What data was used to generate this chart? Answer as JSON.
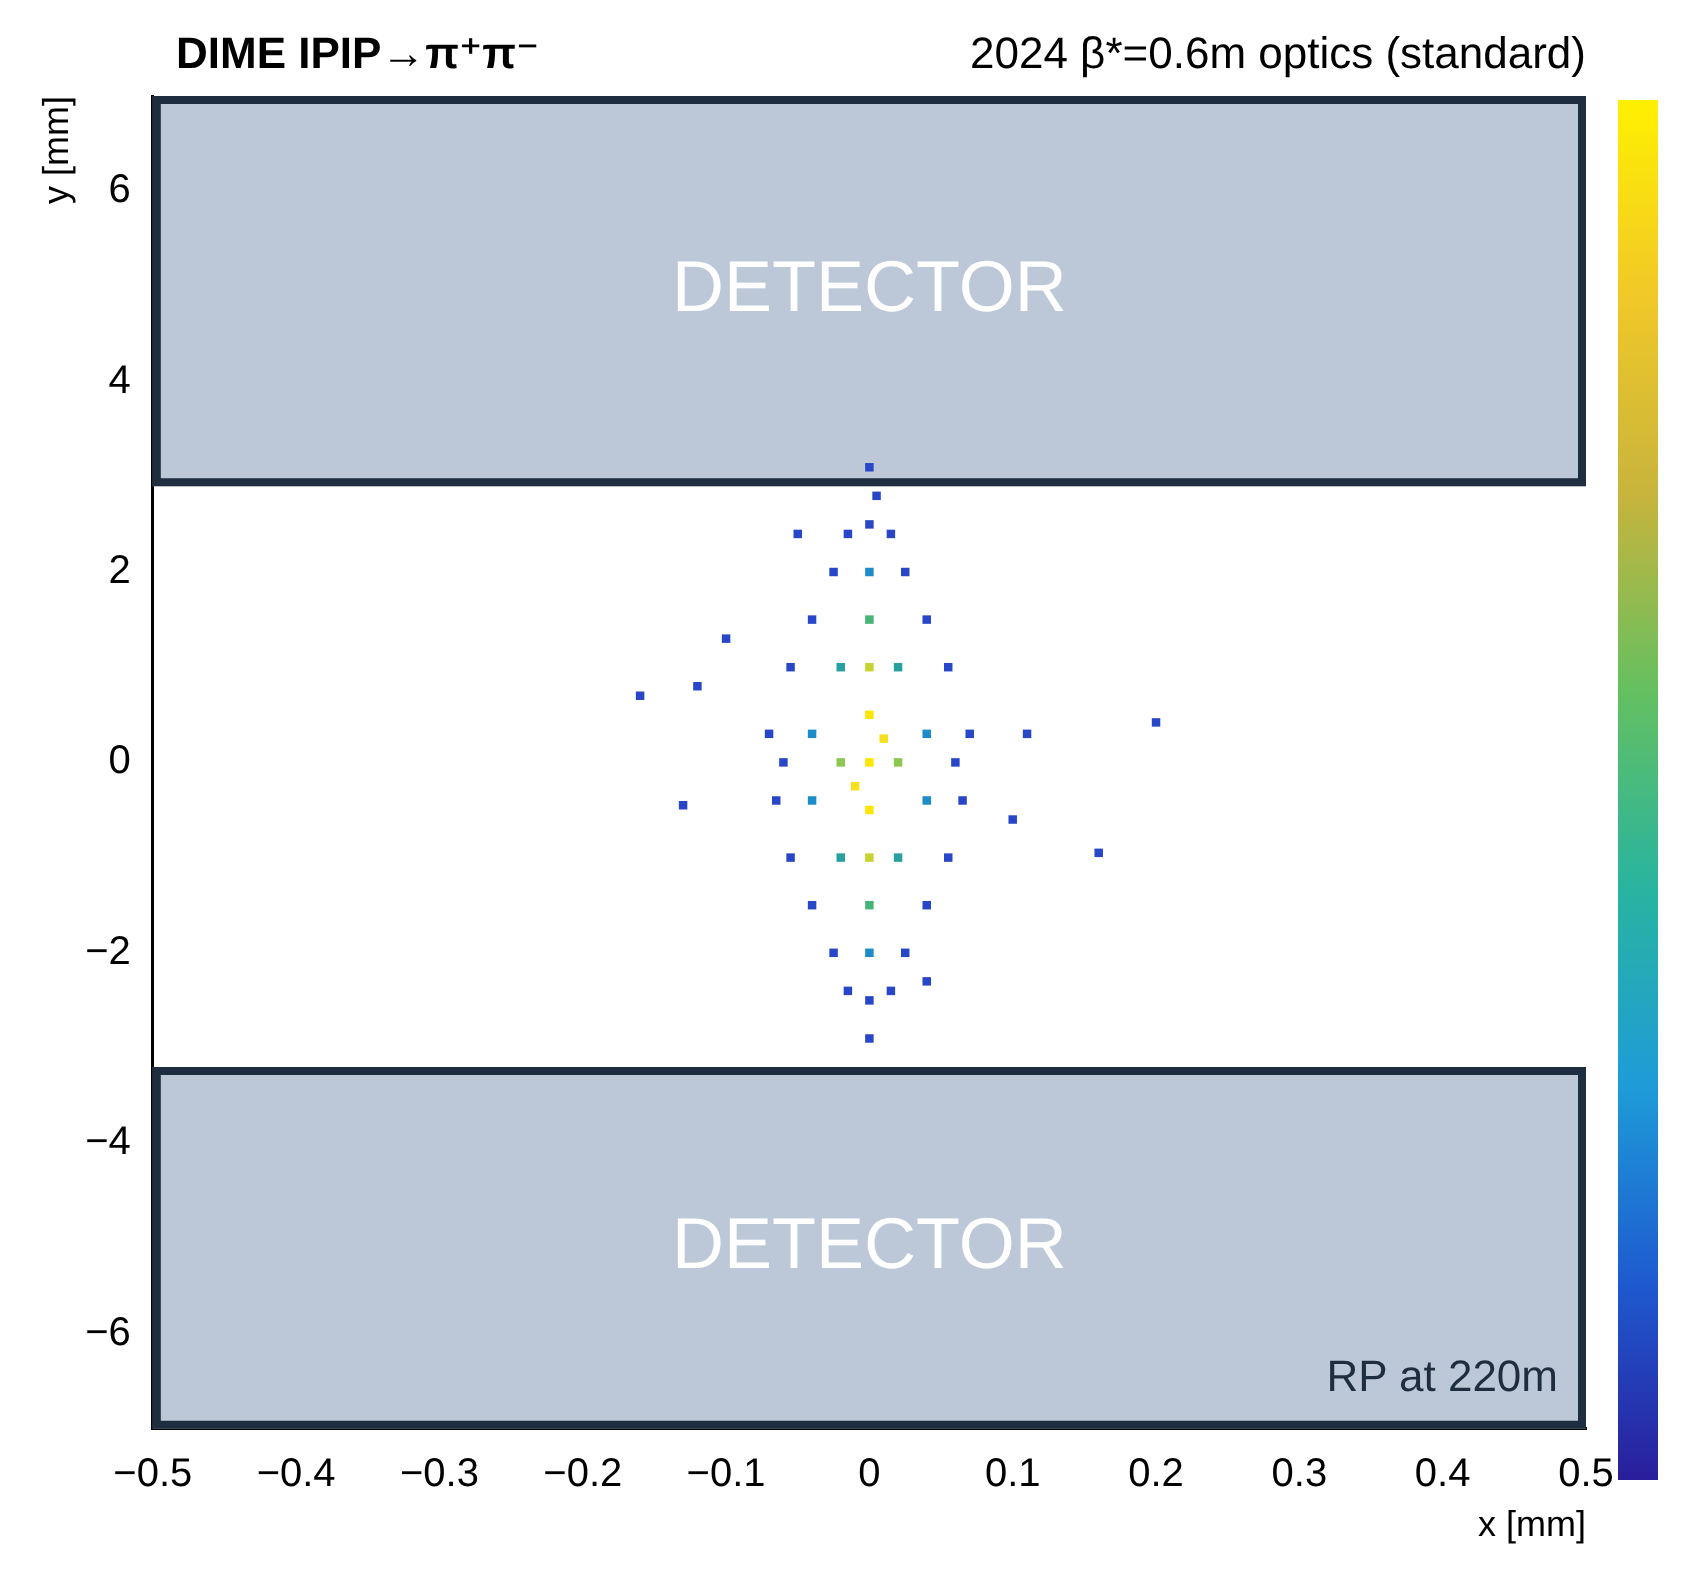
{
  "chart_data": {
    "type": "scatter",
    "title": "DIME IPIP→π⁺π⁻",
    "subtitle": "2024 β*=0.6m optics (standard)",
    "xlabel": "x [mm]",
    "ylabel": "y [mm]",
    "x": [
      0,
      0,
      0,
      0.01,
      -0.01,
      0,
      0,
      0,
      0,
      0,
      0,
      0,
      0,
      0,
      0.005,
      0,
      0.02,
      -0.02,
      0.02,
      -0.02,
      0.02,
      -0.02,
      0.04,
      -0.04,
      0.04,
      -0.04,
      0.06,
      -0.06,
      0.07,
      -0.07,
      0.065,
      -0.065,
      0.055,
      -0.055,
      0.055,
      -0.055,
      0.04,
      -0.04,
      0.04,
      -0.04,
      0.025,
      -0.025,
      0.025,
      -0.025,
      0.015,
      -0.015,
      0.015,
      -0.015,
      -0.16,
      0.2,
      0.16,
      -0.13,
      -0.1,
      0.11,
      -0.12,
      0.1,
      -0.05,
      0.04
    ],
    "values": [
      0,
      0.5,
      -0.5,
      0.25,
      -0.25,
      1,
      -1,
      1.5,
      -1.5,
      2,
      -2,
      2.5,
      -2.5,
      3.1,
      2.8,
      -2.9,
      0,
      0,
      1,
      1,
      -1,
      -1,
      0.3,
      0.3,
      -0.4,
      -0.4,
      0,
      0,
      0.3,
      0.3,
      -0.4,
      -0.4,
      1,
      1,
      -1,
      -1,
      1.5,
      1.5,
      -1.5,
      -1.5,
      2,
      2,
      -2,
      -2,
      2.4,
      2.4,
      -2.4,
      -2.4,
      0.7,
      0.42,
      -0.95,
      -0.45,
      1.3,
      0.3,
      0.8,
      -0.6,
      2.4,
      -2.3
    ],
    "colors": [
      "#ffe600",
      "#ffe600",
      "#ffe600",
      "#f5e01e",
      "#f5e01e",
      "#c8d232",
      "#c8d232",
      "#46b478",
      "#46b478",
      "#1e8cc8",
      "#1e8cc8",
      "#2846c8",
      "#2846c8",
      "#2846c8",
      "#2846c8",
      "#2846c8",
      "#8cc850",
      "#8cc850",
      "#28a0a0",
      "#28a0a0",
      "#28a0a0",
      "#28a0a0",
      "#1e8cc8",
      "#1e8cc8",
      "#1e8cc8",
      "#1e8cc8",
      "#2846c8",
      "#2846c8",
      "#2846c8",
      "#2846c8",
      "#2846c8",
      "#2846c8",
      "#2846c8",
      "#2846c8",
      "#2846c8",
      "#2846c8",
      "#2846c8",
      "#2846c8",
      "#2846c8",
      "#2846c8",
      "#2846c8",
      "#2846c8",
      "#2846c8",
      "#2846c8",
      "#2846c8",
      "#2846c8",
      "#2846c8",
      "#2846c8",
      "#2846c8",
      "#2846c8",
      "#2846c8",
      "#2846c8",
      "#2846c8",
      "#2846c8",
      "#2846c8",
      "#2846c8",
      "#2846c8",
      "#2846c8"
    ],
    "xlim": [
      -0.5,
      0.5
    ],
    "xticks": [
      {
        "value": -0.5,
        "label": "−0.5"
      },
      {
        "value": -0.4,
        "label": "−0.4"
      },
      {
        "value": -0.3,
        "label": "−0.3"
      },
      {
        "value": -0.2,
        "label": "−0.2"
      },
      {
        "value": -0.1,
        "label": "−0.1"
      },
      0,
      0.1,
      0.2,
      0.3,
      0.4,
      0.5
    ],
    "ylim": [
      -7,
      7
    ],
    "yticks": [
      {
        "value": -6,
        "label": "−6"
      },
      {
        "value": -4,
        "label": "−4"
      },
      {
        "value": -2,
        "label": "−2"
      },
      0,
      2,
      4,
      6
    ],
    "bands": [
      {
        "axis": "y",
        "from": 2.9,
        "to": 7,
        "label": "DETECTOR",
        "color": "#bcc8d8"
      },
      {
        "axis": "y",
        "from": -7,
        "to": -3.2,
        "label": "DETECTOR",
        "color": "#bcc8d8"
      }
    ],
    "annotations": [
      "RP at 220m"
    ],
    "marker": "square",
    "grid": false,
    "legend": false
  }
}
